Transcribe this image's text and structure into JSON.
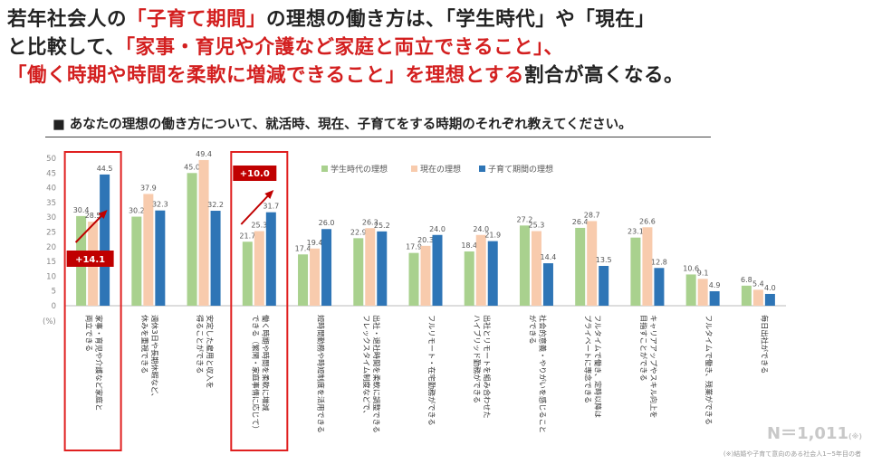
{
  "headline": {
    "line1_a": "若年社会人の",
    "line1_b": "「子育て期間」",
    "line1_c": "の理想の働き方は、「学生時代」や「現在」",
    "line2_a": "と比較して、",
    "line2_b": "「家事・育児や介護など家庭と両立できること」、",
    "line3_a": "「働く時期や時間を柔軟に増減できること」を理想とする",
    "line3_b": "割合が高くなる。"
  },
  "subtitle": "■ あなたの理想の働き方について、就活時、現在、子育てをする時期のそれぞれ教えてください。",
  "sample_count": "N＝1,011",
  "sample_count_note": "(※)",
  "footnote": "(※)結婚や子育て意向のある社会人1~5年目の者",
  "colors": {
    "student": "#a9d18e",
    "current": "#f8cbad",
    "childcare": "#2e75b6",
    "highlight": "#e02020",
    "arrow": "#c00000"
  },
  "chart_data": {
    "type": "bar",
    "ylim": [
      0,
      50
    ],
    "yticks": [
      0,
      5,
      10,
      15,
      20,
      25,
      30,
      35,
      40,
      45,
      50
    ],
    "ylabel": "(%)",
    "legend_position": "top-right",
    "categories": [
      [
        "家事・育児や介護など家庭と",
        "両立できる"
      ],
      [
        "週休3日や長期休暇など、",
        "休みを重視できる"
      ],
      [
        "安定した雇用と収入を",
        "得ることができる"
      ],
      [
        "働く時期や時間を柔軟に増減",
        "できる（繁閑・家庭事情に応じて）"
      ],
      [
        "短時間勤務や時短制度を活用できる"
      ],
      [
        "出社・退社時間を柔軟に調整できる",
        "フレックスタイム制度などで、"
      ],
      [
        "フルリモート・在宅勤務ができる"
      ],
      [
        "出社とリモートを組み合わせた",
        "ハイブリッド勤務ができる"
      ],
      [
        "社会的意義・やりがいを感じること",
        "ができる"
      ],
      [
        "フルタイムで働き、定時以降は",
        "プライベートに専念できる"
      ],
      [
        "キャリアアップやスキル向上を",
        "目指すことができる"
      ],
      [
        "フルタイムで働き、残業ができる"
      ],
      [
        "毎日出社ができる"
      ]
    ],
    "series": [
      {
        "name": "学生時代の理想",
        "values": [
          30.4,
          30.2,
          45.0,
          21.7,
          17.4,
          22.9,
          17.9,
          18.4,
          27.2,
          26.4,
          23.1,
          10.6,
          6.8
        ]
      },
      {
        "name": "現在の理想",
        "values": [
          28.5,
          37.9,
          49.4,
          25.3,
          19.4,
          26.3,
          20.3,
          24.0,
          25.3,
          28.7,
          26.6,
          9.1,
          5.4
        ]
      },
      {
        "name": "子育て期間の理想",
        "values": [
          44.5,
          32.3,
          32.2,
          31.7,
          26.0,
          25.2,
          24.0,
          21.9,
          14.4,
          13.5,
          12.8,
          4.9,
          4.0
        ]
      }
    ],
    "annotations": [
      {
        "label": "+14.1",
        "category_index": 0
      },
      {
        "label": "+10.0",
        "category_index": 3
      }
    ]
  }
}
